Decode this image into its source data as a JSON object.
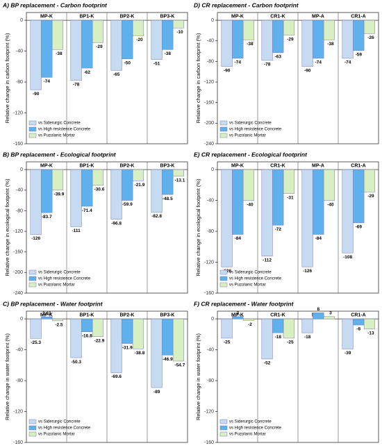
{
  "chart_data": [
    {
      "type": "bar",
      "title": "A) BP replacement  - Carbon footprint",
      "y_label": "Relative change in carbon footprint (%)",
      "categories": [
        "MP-K",
        "BP1-K",
        "BP2-K",
        "BP3-K"
      ],
      "series": [
        {
          "name": "vs Siderurgic Concrete",
          "color": "#c6daf2",
          "values": [
            -90,
            -78,
            -65,
            -51
          ]
        },
        {
          "name": "vs High resistence Concrete",
          "color": "#5fb1ee",
          "values": [
            -74,
            -62,
            -50,
            -38
          ]
        },
        {
          "name": "vs Puzolanic Mortar",
          "color": "#d8efc1",
          "values": [
            -38,
            -29,
            -20,
            -10
          ]
        }
      ],
      "ylim": [
        -160,
        10
      ],
      "yticks": [
        0,
        -40,
        -80,
        -120,
        -160
      ]
    },
    {
      "type": "bar",
      "title": "B) BP replacement  - Ecological footprint",
      "y_label": "Relative change in ecological footprint (%)",
      "categories": [
        "MP-K",
        "BP1-K",
        "BP2-K",
        "BP3-K"
      ],
      "series": [
        {
          "name": "vs Siderurgic Concrete",
          "color": "#c6daf2",
          "values": [
            -126,
            -111,
            -96.8,
            -82.8
          ]
        },
        {
          "name": "vs High resistence Concrete",
          "color": "#5fb1ee",
          "values": [
            -83.7,
            -71.4,
            -59.9,
            -48.5
          ]
        },
        {
          "name": "vs Puzolanic Mortar",
          "color": "#d8efc1",
          "values": [
            -39.9,
            -30.6,
            -21.9,
            -13.1
          ]
        }
      ],
      "ylim": [
        -240,
        15
      ],
      "yticks": [
        0,
        -40,
        -80,
        -120,
        -160,
        -200,
        -240
      ]
    },
    {
      "type": "bar",
      "title": "C) BP replacement  - Water footprint",
      "y_label": "Relative change in water footprint (%)",
      "categories": [
        "MP-K",
        "BP1-K",
        "BP2-K",
        "BP3-K"
      ],
      "series": [
        {
          "name": "vs Siderurgic Concrete",
          "color": "#c6daf2",
          "values": [
            -25.3,
            -50.3,
            -69.6,
            -89
          ]
        },
        {
          "name": "vs High resistence Concrete",
          "color": "#5fb1ee",
          "values": [
            2.63,
            -16.8,
            -31.9,
            -46.9
          ]
        },
        {
          "name": "vs Puzolanic Mortar",
          "color": "#d8efc1",
          "values": [
            -2.5,
            -22.9,
            -38.8,
            -54.7
          ]
        }
      ],
      "ylim": [
        -160,
        10
      ],
      "yticks": [
        0,
        -40,
        -80,
        -120,
        -160
      ]
    },
    {
      "type": "bar",
      "title": "D) CR replacement  - Carbon footprint",
      "y_label": "Relative change in carbon footprint (%)",
      "categories": [
        "MP-K",
        "CR1-K",
        "MP-A",
        "CR1-A"
      ],
      "series": [
        {
          "name": "vs Siderurgic Concrete",
          "color": "#c6daf2",
          "values": [
            -90,
            -78,
            -90,
            -74
          ]
        },
        {
          "name": "vs High resistence Concrete",
          "color": "#5fb1ee",
          "values": [
            -74,
            -63,
            -74,
            -59
          ]
        },
        {
          "name": "vs Puzolanic Mortar",
          "color": "#d8efc1",
          "values": [
            -38,
            -29,
            -38,
            -26
          ]
        }
      ],
      "ylim": [
        -240,
        15
      ],
      "yticks": [
        0,
        -40,
        -80,
        -120,
        -160,
        -200,
        -240
      ]
    },
    {
      "type": "bar",
      "title": "E) CR replacement  - Ecological footprint",
      "y_label": "Relative change in ecological footprint (%)",
      "categories": [
        "MP-K",
        "CR1-K",
        "MP-A",
        "CR1-A"
      ],
      "series": [
        {
          "name": "vs Siderurgic Concrete",
          "color": "#c6daf2",
          "values": [
            -126,
            -112,
            -126,
            -108
          ]
        },
        {
          "name": "vs High resistence Concrete",
          "color": "#5fb1ee",
          "values": [
            -84,
            -72,
            -84,
            -69
          ]
        },
        {
          "name": "vs Puzolanic Mortar",
          "color": "#d8efc1",
          "values": [
            -40,
            -31,
            -40,
            -29
          ]
        }
      ],
      "ylim": [
        -160,
        10
      ],
      "yticks": [
        0,
        -40,
        -80,
        -120,
        -160
      ]
    },
    {
      "type": "bar",
      "title": "F) CR replacement  - Water footprint",
      "y_label": "Relative change in water footprint (%)",
      "categories": [
        "MP-K",
        "CR1-K",
        "MP-A",
        "CR1-A"
      ],
      "series": [
        {
          "name": "vs Siderurgic Concrete",
          "color": "#c6daf2",
          "values": [
            -25,
            -52,
            -18,
            -39
          ]
        },
        {
          "name": "vs High resistence Concrete",
          "color": "#5fb1ee",
          "values": [
            3,
            -18,
            8,
            -8
          ]
        },
        {
          "name": "vs Puzolanic Mortar",
          "color": "#d8efc1",
          "values": [
            -2,
            -25,
            3,
            -13
          ]
        }
      ],
      "ylim": [
        -160,
        10
      ],
      "yticks": [
        0,
        -40,
        -80,
        -120,
        -160
      ]
    }
  ]
}
